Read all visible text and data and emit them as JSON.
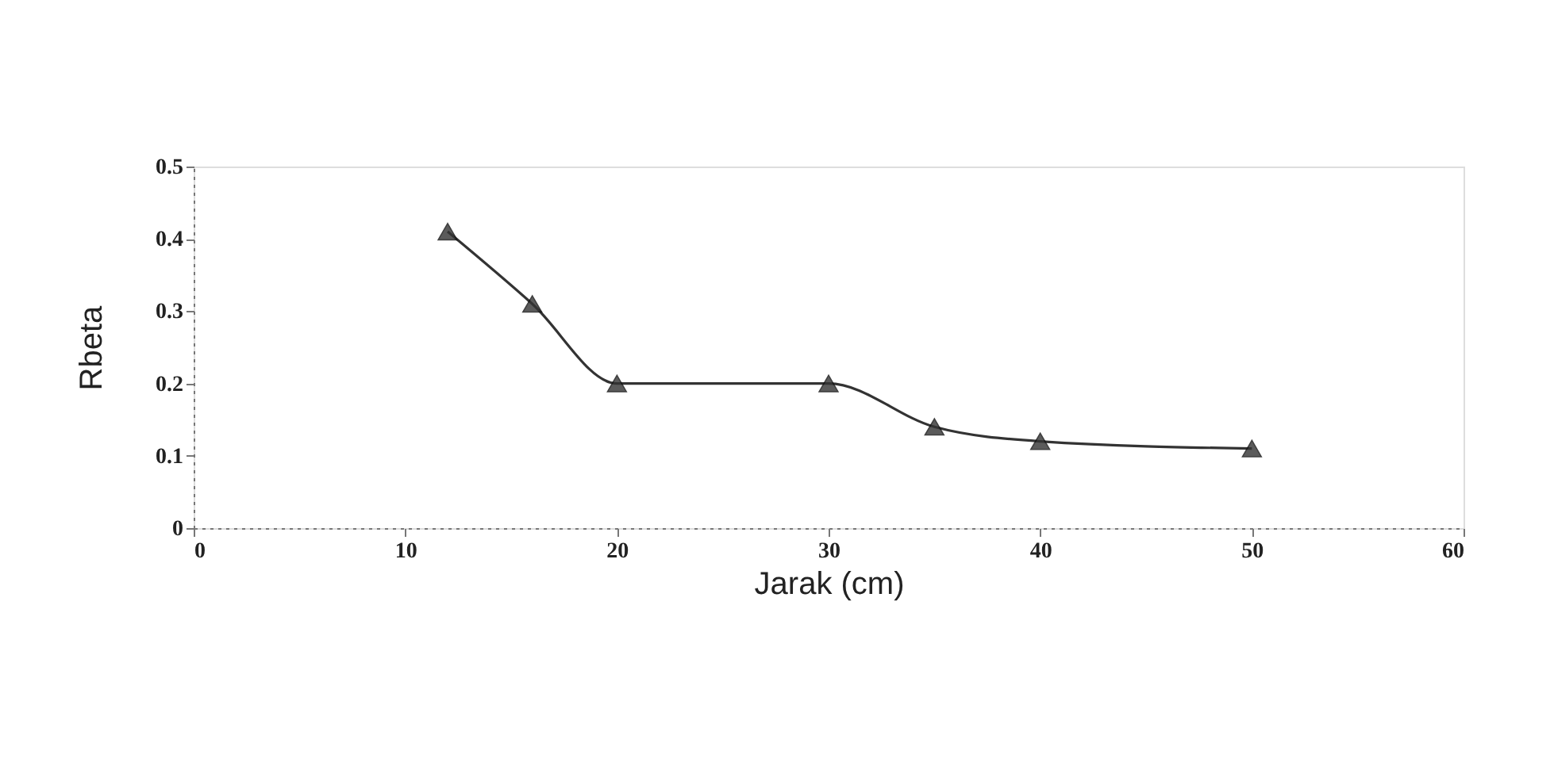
{
  "chart_data": {
    "type": "line",
    "xlabel": "Jarak (cm)",
    "ylabel": "Rbeta",
    "x": [
      12,
      16,
      20,
      30,
      35,
      40,
      50
    ],
    "series": [
      {
        "color": "#333333",
        "values": [
          0.41,
          0.31,
          0.2,
          0.2,
          0.14,
          0.12,
          0.11
        ]
      }
    ],
    "xlim": [
      0,
      60
    ],
    "xticks": [
      0,
      10,
      20,
      30,
      40,
      50,
      60
    ],
    "ylim": [
      0,
      0.5
    ],
    "yticks": [
      0,
      0.1,
      0.2,
      0.3,
      0.4,
      0.5
    ],
    "grid": false,
    "marker": "triangle",
    "line_style": "solid"
  }
}
